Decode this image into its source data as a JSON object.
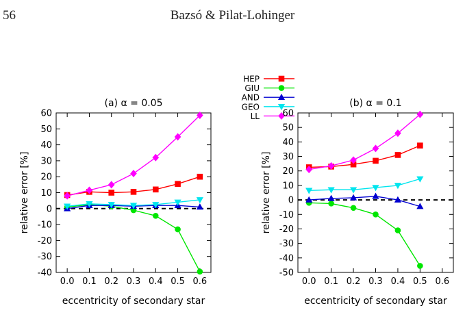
{
  "header": {
    "page_number": "56",
    "running_title": "Bazsó & Pilat-Lohinger"
  },
  "legend": {
    "placement": "top-center",
    "entries": [
      {
        "name": "HEP",
        "color": "#ff0000",
        "marker": "square"
      },
      {
        "name": "GIU",
        "color": "#00e600",
        "marker": "circle"
      },
      {
        "name": "AND",
        "color": "#0000d0",
        "marker": "triangle-up"
      },
      {
        "name": "GEO",
        "color": "#00e5ee",
        "marker": "triangle-down"
      },
      {
        "name": "LL",
        "color": "#ff00ff",
        "marker": "diamond"
      }
    ]
  },
  "chart_data": [
    {
      "type": "line",
      "title": "(a) α = 0.05",
      "xlabel": "eccentricity of secondary star",
      "ylabel": "relative error [%]",
      "xlim": [
        -0.05,
        0.65
      ],
      "ylim": [
        -40,
        60
      ],
      "xticks": [
        "0.0",
        "0.1",
        "0.2",
        "0.3",
        "0.4",
        "0.5",
        "0.6"
      ],
      "yticks": [
        "-40",
        "-30",
        "-20",
        "-10",
        "0",
        "10",
        "20",
        "30",
        "40",
        "50",
        "60"
      ],
      "zero_line": "dashed",
      "grid": false,
      "x": [
        0.0,
        0.1,
        0.2,
        0.3,
        0.4,
        0.5,
        0.6
      ],
      "series": [
        {
          "name": "HEP",
          "color": "#ff0000",
          "marker": "square",
          "values": [
            8.5,
            10.5,
            10,
            10.5,
            12,
            15.5,
            20
          ]
        },
        {
          "name": "GIU",
          "color": "#00e600",
          "marker": "circle",
          "values": [
            1,
            2.5,
            1.5,
            -1,
            -4.5,
            -13,
            -39.5
          ]
        },
        {
          "name": "AND",
          "color": "#0000d0",
          "marker": "triangle-up",
          "values": [
            0,
            2,
            2,
            1.5,
            2,
            2,
            1
          ]
        },
        {
          "name": "GEO",
          "color": "#00e5ee",
          "marker": "triangle-down",
          "values": [
            1.5,
            3,
            2.5,
            2,
            2.5,
            4,
            5.5
          ]
        },
        {
          "name": "LL",
          "color": "#ff00ff",
          "marker": "diamond",
          "values": [
            8,
            11.5,
            15,
            22,
            32,
            45,
            58.5
          ]
        }
      ]
    },
    {
      "type": "line",
      "title": "(b) α = 0.1",
      "xlabel": "eccentricity of secondary star",
      "ylabel": "relative error [%]",
      "xlim": [
        -0.05,
        0.65
      ],
      "ylim": [
        -50,
        60
      ],
      "xticks": [
        "0.0",
        "0.1",
        "0.2",
        "0.3",
        "0.4",
        "0.5",
        "0.6"
      ],
      "yticks": [
        "-50",
        "-40",
        "-30",
        "-20",
        "-10",
        "0",
        "10",
        "20",
        "30",
        "40",
        "50",
        "60"
      ],
      "zero_line": "dashed",
      "grid": false,
      "x": [
        0.0,
        0.1,
        0.2,
        0.3,
        0.4,
        0.5
      ],
      "series": [
        {
          "name": "HEP",
          "color": "#ff0000",
          "marker": "square",
          "values": [
            22.5,
            23,
            24.5,
            27,
            31,
            37.5
          ]
        },
        {
          "name": "GIU",
          "color": "#00e600",
          "marker": "circle",
          "values": [
            -2,
            -2.5,
            -5.5,
            -10,
            -21,
            -45.5
          ]
        },
        {
          "name": "AND",
          "color": "#0000d0",
          "marker": "triangle-up",
          "values": [
            0,
            1,
            1.5,
            2.5,
            0,
            -4.5
          ]
        },
        {
          "name": "GEO",
          "color": "#00e5ee",
          "marker": "triangle-down",
          "values": [
            6.5,
            7,
            7,
            8.5,
            10,
            14.5
          ]
        },
        {
          "name": "LL",
          "color": "#ff00ff",
          "marker": "diamond",
          "values": [
            21,
            23.5,
            27.5,
            35.5,
            46,
            59
          ]
        }
      ]
    }
  ]
}
